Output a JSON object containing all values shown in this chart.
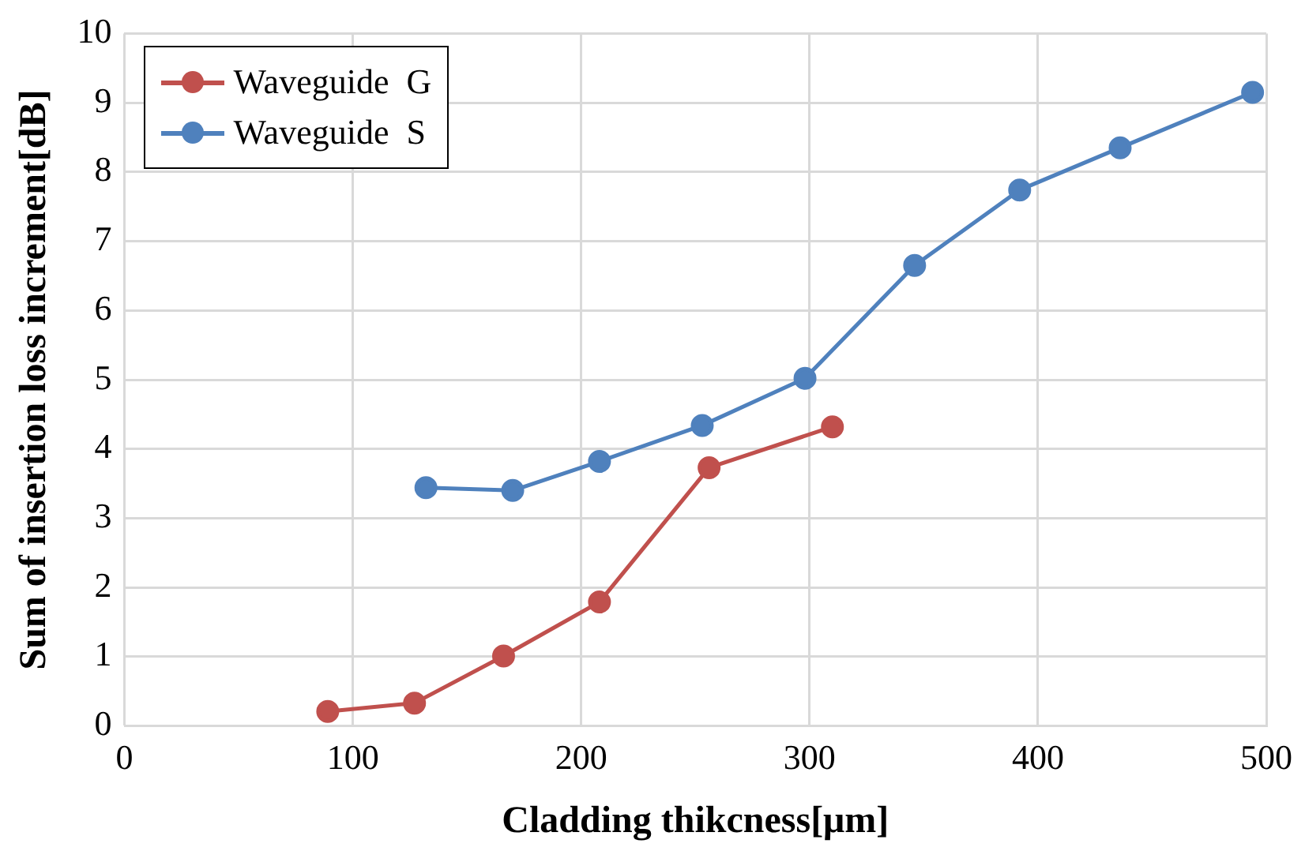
{
  "chart_data": {
    "type": "line",
    "xlabel": "Cladding thikcness[μm]",
    "ylabel": "Sum of insertion loss increment[dB]",
    "xlim": [
      0,
      500
    ],
    "xticks": [
      0,
      100,
      200,
      300,
      400,
      500
    ],
    "ylim": [
      0,
      10
    ],
    "yticks": [
      0,
      1,
      2,
      3,
      4,
      5,
      6,
      7,
      8,
      9,
      10
    ],
    "grid": true,
    "legend": "top left",
    "marker": "circle",
    "line_style": "solid",
    "series": [
      {
        "name": "Waveguide  G",
        "color": "#c0504d",
        "x": [
          89,
          127,
          166,
          208,
          256,
          310
        ],
        "values": [
          0.21,
          0.33,
          1.01,
          1.79,
          3.73,
          4.32
        ]
      },
      {
        "name": "Waveguide  S",
        "color": "#4f81bd",
        "x": [
          132,
          170,
          208,
          253,
          298,
          346,
          392,
          436,
          494
        ],
        "values": [
          3.44,
          3.4,
          3.82,
          4.34,
          5.02,
          6.65,
          7.74,
          8.35,
          9.15
        ]
      }
    ]
  }
}
